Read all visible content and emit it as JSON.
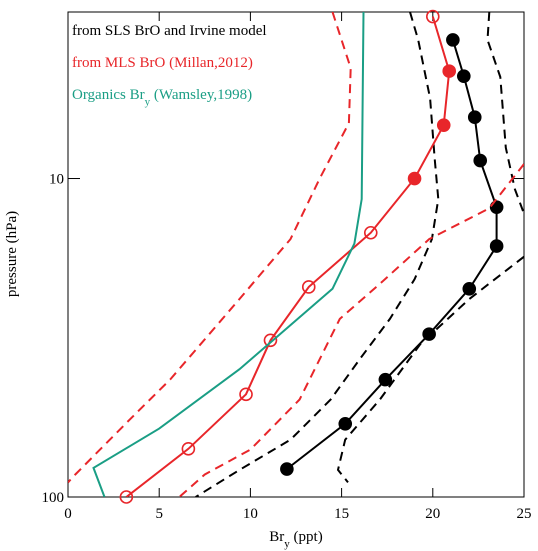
{
  "chart_data": {
    "type": "line",
    "xlabel": [
      "Br",
      "y",
      " (ppt)"
    ],
    "ylabel": "pressure (hPa)",
    "xlim": [
      0,
      25
    ],
    "xticks": [
      0,
      5,
      10,
      15,
      20,
      25
    ],
    "ylim": [
      100,
      3
    ],
    "yticks": [
      10,
      100
    ],
    "ylog": true,
    "series": [
      {
        "name": [
          "from SLS BrO and Irvine model"
        ],
        "color": "#000000",
        "dash": false,
        "marker": true,
        "filled": [
          true,
          true,
          true,
          true,
          true,
          true,
          true,
          true,
          true,
          true,
          true
        ],
        "x": [
          21.1,
          21.7,
          22.3,
          22.6,
          23.5,
          23.5,
          22.0,
          19.8,
          17.4,
          15.2,
          12.0
        ],
        "y": [
          3.67,
          4.77,
          6.42,
          8.78,
          12.3,
          16.3,
          22.2,
          30.8,
          42.8,
          58.9,
          81.7
        ]
      },
      {
        "color": "#000000",
        "dash": true,
        "marker": false,
        "x": [
          18.75,
          19.2,
          19.85,
          20.1,
          20.3,
          19.95,
          19.0,
          17.65,
          16.0,
          14.4,
          12.2,
          9.4,
          7.0
        ],
        "y": [
          3.0,
          3.67,
          5.6,
          8.6,
          11.6,
          15.5,
          20.7,
          27.6,
          36.9,
          49.4,
          66.1,
          82.2,
          100
        ]
      },
      {
        "color": "#000000",
        "dash": true,
        "marker": false,
        "x": [
          23.1,
          23.0,
          23.7,
          24.0,
          24.5,
          25,
          null,
          25,
          22.0,
          19.3,
          17.1,
          15.2,
          14.8,
          15.35
        ],
        "y": [
          3.0,
          3.67,
          4.8,
          8.0,
          10.8,
          12.9,
          null,
          17.6,
          23.9,
          33.2,
          49.4,
          66.1,
          82.2,
          90
        ]
      },
      {
        "name": [
          "from MLS BrO (Millan,2012)"
        ],
        "color": "#e8262a",
        "dash": false,
        "marker": true,
        "filled": [
          false,
          true,
          true,
          true,
          false,
          false,
          false,
          false,
          false,
          false
        ],
        "x": [
          20.0,
          20.9,
          20.6,
          19.0,
          16.6,
          13.2,
          11.1,
          9.76,
          6.6,
          3.2
        ],
        "y": [
          3.1,
          4.6,
          6.8,
          10,
          14.8,
          21.9,
          32.2,
          47.6,
          70.6,
          100
        ]
      },
      {
        "color": "#e8262a",
        "dash": true,
        "marker": false,
        "x": [
          14.5,
          15.5,
          15.4,
          13.8,
          12.2,
          9.4,
          5.6,
          3.4,
          0.4,
          0
        ],
        "y": [
          3.0,
          4.5,
          6.7,
          10,
          15.5,
          23.9,
          42.8,
          57,
          85,
          90
        ]
      },
      {
        "color": "#e8262a",
        "dash": true,
        "marker": false,
        "x": [
          25,
          23.1,
          19.8,
          17.1,
          14.9,
          12.7,
          10.0,
          7.5,
          6.1
        ],
        "y": [
          9,
          12.4,
          15.5,
          21.4,
          27.6,
          49.4,
          71,
          85,
          100
        ]
      },
      {
        "name": [
          "Organics Br",
          "y",
          " (Wamsley,1998)"
        ],
        "color": "#1a9e85",
        "dash": false,
        "marker": false,
        "x": [
          16.2,
          16.1,
          15.7,
          14.5,
          9.4,
          5.0,
          1.4,
          2.0
        ],
        "y": [
          3,
          11.6,
          16,
          22.2,
          39.7,
          61,
          81,
          100
        ]
      }
    ]
  }
}
